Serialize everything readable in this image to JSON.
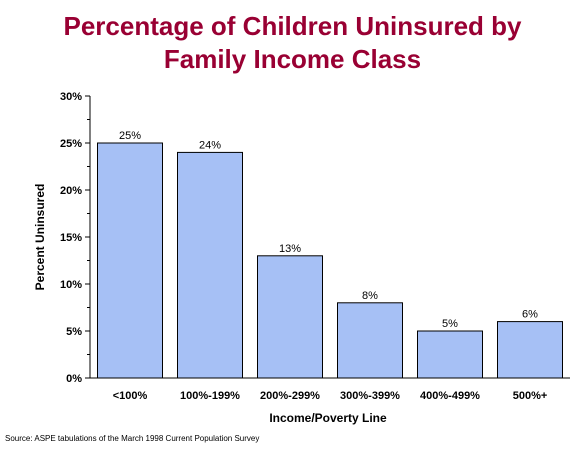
{
  "chart_data": {
    "type": "bar",
    "title_lines": [
      "Percentage of Children Uninsured by",
      "Family Income Class"
    ],
    "xlabel": "Income/Poverty Line",
    "ylabel": "Percent Uninsured",
    "categories": [
      "<100%",
      "100%-199%",
      "200%-299%",
      "300%-399%",
      "400%-499%",
      "500%+"
    ],
    "values": [
      25,
      24,
      13,
      8,
      5,
      6
    ],
    "data_labels": [
      "25%",
      "24%",
      "13%",
      "8%",
      "5%",
      "6%"
    ],
    "ylim": [
      0,
      30
    ],
    "yticks": [
      0,
      5,
      10,
      15,
      20,
      25,
      30
    ],
    "ytick_labels": [
      "0%",
      "5%",
      "10%",
      "15%",
      "20%",
      "25%",
      "30%"
    ],
    "bar_color": "#a6c0f5",
    "title_color": "#990033",
    "grid": false,
    "legend": "none"
  },
  "source_note": "Source: ASPE tabulations of the March 1998 Current Population Survey"
}
